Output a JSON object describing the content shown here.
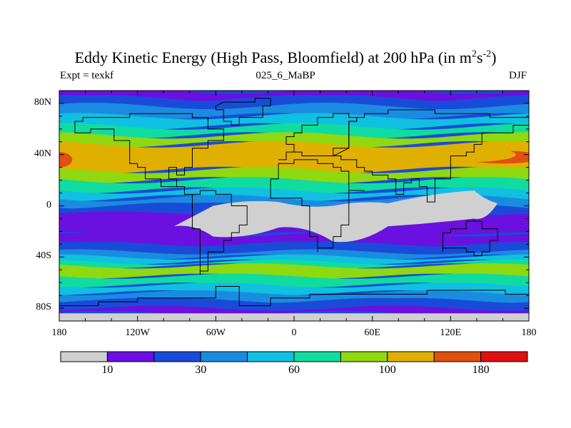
{
  "chart_data": {
    "type": "heatmap",
    "title": "Eddy Kinetic Energy (High Pass, Bloomfield) at 200 hPa (in m",
    "title_units_exp1": "2",
    "title_units_mid": "s",
    "title_units_exp2": "-2",
    "title_units_close": ")",
    "subtitle_left": "Expt = texkf",
    "subtitle_center": "025_6_MaBP",
    "subtitle_right": "DJF",
    "x_axis": {
      "range": [
        -180,
        180
      ],
      "ticks": [
        {
          "value": -180,
          "label": "180"
        },
        {
          "value": -120,
          "label": "120W"
        },
        {
          "value": -60,
          "label": "60W"
        },
        {
          "value": 0,
          "label": "0"
        },
        {
          "value": 60,
          "label": "60E"
        },
        {
          "value": 120,
          "label": "120E"
        },
        {
          "value": 180,
          "label": "180"
        }
      ]
    },
    "y_axis": {
      "range": [
        -90,
        90
      ],
      "ticks": [
        {
          "value": 80,
          "label": "80N"
        },
        {
          "value": 40,
          "label": "40N"
        },
        {
          "value": 0,
          "label": "0"
        },
        {
          "value": -40,
          "label": "40S"
        },
        {
          "value": -80,
          "label": "80S"
        }
      ]
    },
    "colorbar": {
      "colors": [
        "#d0d0d0",
        "#6a10e0",
        "#1a4bd8",
        "#1a8ce0",
        "#10c0e0",
        "#10dca0",
        "#90d810",
        "#e0b000",
        "#e05010",
        "#e01010"
      ],
      "labels": [
        {
          "boundary": 1,
          "label": "10"
        },
        {
          "boundary": 3,
          "label": "30"
        },
        {
          "boundary": 5,
          "label": "60"
        },
        {
          "boundary": 7,
          "label": "100"
        },
        {
          "boundary": 9,
          "label": "180"
        }
      ]
    },
    "bands_NH": [
      {
        "lat": 90,
        "level": 1
      },
      {
        "lat": 84,
        "level": 2
      },
      {
        "lat": 78,
        "level": 3
      },
      {
        "lat": 70,
        "level": 4
      },
      {
        "lat": 62,
        "level": 5
      },
      {
        "lat": 55,
        "level": 6
      },
      {
        "lat": 48,
        "level": 7
      },
      {
        "lat": 28,
        "level": 6
      },
      {
        "lat": 20,
        "level": 5
      },
      {
        "lat": 12,
        "level": 4
      },
      {
        "lat": 6,
        "level": 3
      },
      {
        "lat": 0,
        "level": 2
      },
      {
        "lat": -6,
        "level": 1
      }
    ],
    "bands_SH": [
      {
        "lat": -22,
        "level": 1
      },
      {
        "lat": -30,
        "level": 2
      },
      {
        "lat": -36,
        "level": 3
      },
      {
        "lat": -40,
        "level": 4
      },
      {
        "lat": -44,
        "level": 5
      },
      {
        "lat": -47,
        "level": 6
      },
      {
        "lat": -55,
        "level": 5
      },
      {
        "lat": -62,
        "level": 4
      },
      {
        "lat": -68,
        "level": 3
      },
      {
        "lat": -74,
        "level": 2
      },
      {
        "lat": -80,
        "level": 1
      },
      {
        "lat": -84,
        "level": 0
      }
    ],
    "jet_core_40N": [
      {
        "lon": -180,
        "lat": 36,
        "level": 8,
        "width": 10,
        "height": 6
      },
      {
        "lon": 160,
        "lat": 38,
        "level": 8,
        "width": 30,
        "height": 5
      },
      {
        "lon": 130,
        "lat": 40,
        "level": 7,
        "width": 40,
        "height": 6
      }
    ],
    "low_energy_regions": [
      {
        "lon": -62,
        "lat": -10
      },
      {
        "lon": -12,
        "lat": -5
      },
      {
        "lon": 30,
        "lat": -10
      },
      {
        "lon": 72,
        "lat": -6
      },
      {
        "lon": 138,
        "lat": 0
      }
    ],
    "continents": [
      "North America",
      "South America",
      "Europe",
      "Africa",
      "Asia",
      "Australia",
      "Antarctica",
      "Greenland"
    ]
  }
}
